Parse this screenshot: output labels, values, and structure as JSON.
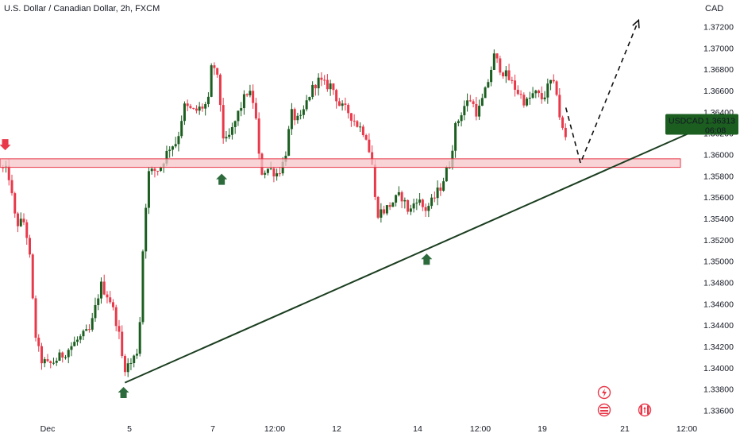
{
  "header": {
    "title": "U.S. Dollar / Canadian Dollar, 2h, FXCM",
    "currency": "CAD"
  },
  "price_tag": {
    "symbol": "USDCAD",
    "price": "1.36313",
    "countdown": "06:08"
  },
  "colors": {
    "up": "#1b5e20",
    "down": "#e8394a",
    "tag_bg": "#1b5e20",
    "zone_fill": "#f6c6c9",
    "zone_stroke": "#e8394a",
    "trendline": "#1a3d1f",
    "arrow_up": "#2e6b3c",
    "arrow_down": "#e8394a"
  },
  "chart_data": {
    "type": "candlestick",
    "yticks": [
      "1.37200",
      "1.37000",
      "1.36800",
      "1.36600",
      "1.36400",
      "1.36200",
      "1.36000",
      "1.35800",
      "1.35600",
      "1.35400",
      "1.35200",
      "1.35000",
      "1.34800",
      "1.34600",
      "1.34400",
      "1.34200",
      "1.34000",
      "1.33800",
      "1.33600"
    ],
    "ylim": [
      1.3355,
      1.3733
    ],
    "xticks": [
      "Dec",
      "5",
      "7",
      "12:00",
      "12",
      "14",
      "12:00",
      "19",
      "21",
      "12:00"
    ],
    "last_price": 1.36313,
    "support_zone": [
      1.3588,
      1.3596
    ],
    "trendline": {
      "from": [
        0.18,
        1.3386
      ],
      "to": [
        1.0,
        1.3622
      ]
    },
    "projection": [
      [
        0.8154,
        1.3644
      ],
      [
        0.8365,
        1.3592
      ],
      [
        0.9202,
        1.3726
      ]
    ],
    "markers": [
      {
        "type": "arrow-down",
        "x": 0.0075,
        "price": 1.3604
      },
      {
        "type": "arrow-up",
        "x": 0.3194,
        "price": 1.3582
      },
      {
        "type": "arrow-up",
        "x": 0.178,
        "price": 1.3382
      },
      {
        "type": "arrow-up",
        "x": 0.6148,
        "price": 1.3507
      }
    ],
    "ohlc_path": [
      [
        0.0,
        1.3588
      ],
      [
        0.012,
        1.3583
      ],
      [
        0.023,
        1.3535
      ],
      [
        0.036,
        1.3537
      ],
      [
        0.043,
        1.3502
      ],
      [
        0.05,
        1.3435
      ],
      [
        0.058,
        1.3408
      ],
      [
        0.07,
        1.3402
      ],
      [
        0.09,
        1.3412
      ],
      [
        0.11,
        1.3425
      ],
      [
        0.13,
        1.3435
      ],
      [
        0.145,
        1.3478
      ],
      [
        0.158,
        1.3465
      ],
      [
        0.17,
        1.3438
      ],
      [
        0.178,
        1.34
      ],
      [
        0.19,
        1.3405
      ],
      [
        0.2,
        1.342
      ],
      [
        0.206,
        1.3512
      ],
      [
        0.213,
        1.3582
      ],
      [
        0.23,
        1.3587
      ],
      [
        0.245,
        1.3608
      ],
      [
        0.255,
        1.3612
      ],
      [
        0.265,
        1.3645
      ],
      [
        0.28,
        1.364
      ],
      [
        0.3,
        1.3648
      ],
      [
        0.306,
        1.369
      ],
      [
        0.315,
        1.3665
      ],
      [
        0.323,
        1.3608
      ],
      [
        0.333,
        1.362
      ],
      [
        0.345,
        1.3642
      ],
      [
        0.357,
        1.366
      ],
      [
        0.367,
        1.3647
      ],
      [
        0.375,
        1.3583
      ],
      [
        0.387,
        1.3587
      ],
      [
        0.4,
        1.3582
      ],
      [
        0.41,
        1.3595
      ],
      [
        0.42,
        1.3638
      ],
      [
        0.432,
        1.363
      ],
      [
        0.445,
        1.3655
      ],
      [
        0.457,
        1.367
      ],
      [
        0.468,
        1.3665
      ],
      [
        0.478,
        1.3665
      ],
      [
        0.49,
        1.3645
      ],
      [
        0.502,
        1.364
      ],
      [
        0.515,
        1.3628
      ],
      [
        0.527,
        1.362
      ],
      [
        0.537,
        1.3588
      ],
      [
        0.542,
        1.3545
      ],
      [
        0.555,
        1.3548
      ],
      [
        0.565,
        1.3555
      ],
      [
        0.578,
        1.3562
      ],
      [
        0.59,
        1.3545
      ],
      [
        0.6,
        1.356
      ],
      [
        0.612,
        1.3548
      ],
      [
        0.622,
        1.3555
      ],
      [
        0.635,
        1.357
      ],
      [
        0.648,
        1.3592
      ],
      [
        0.656,
        1.3625
      ],
      [
        0.668,
        1.3645
      ],
      [
        0.678,
        1.3652
      ],
      [
        0.688,
        1.3638
      ],
      [
        0.7,
        1.366
      ],
      [
        0.712,
        1.3692
      ],
      [
        0.722,
        1.368
      ],
      [
        0.732,
        1.3672
      ],
      [
        0.745,
        1.366
      ],
      [
        0.758,
        1.3648
      ],
      [
        0.77,
        1.3658
      ],
      [
        0.782,
        1.3652
      ],
      [
        0.793,
        1.3668
      ],
      [
        0.802,
        1.366
      ],
      [
        0.808,
        1.3628
      ],
      [
        0.815,
        1.3615
      ]
    ]
  }
}
